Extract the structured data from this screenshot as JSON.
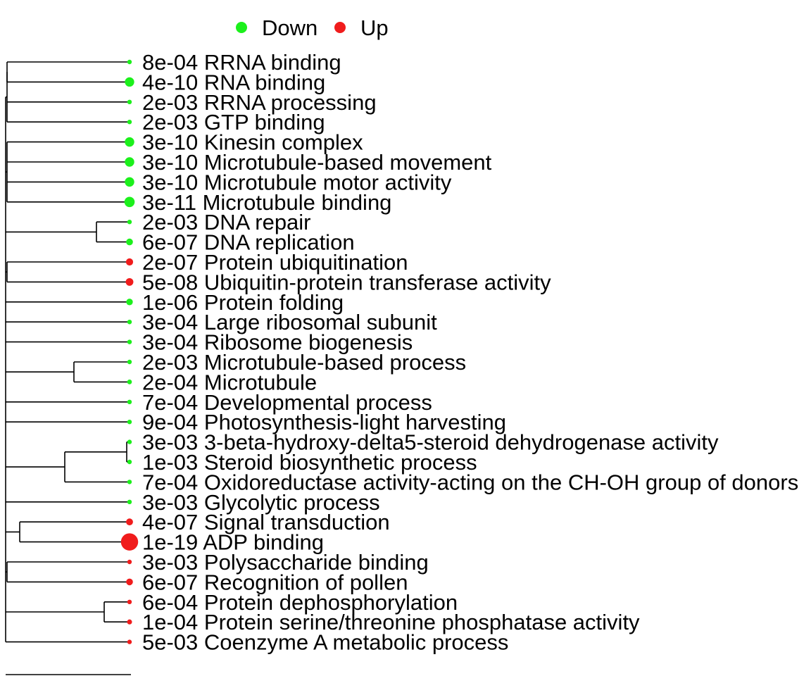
{
  "chart_data": {
    "type": "dendrogram",
    "title": "",
    "legend": {
      "placement": "top",
      "entries": [
        {
          "name": "Down",
          "color": "#1cf01c"
        },
        {
          "name": "Up",
          "color": "#f01c1c"
        }
      ]
    },
    "terms": [
      {
        "p": "8e-04",
        "term": "RRNA binding",
        "direction": "Down"
      },
      {
        "p": "4e-10",
        "term": "RNA binding",
        "direction": "Down"
      },
      {
        "p": "2e-03",
        "term": "RRNA processing",
        "direction": "Down"
      },
      {
        "p": "2e-03",
        "term": "GTP binding",
        "direction": "Down"
      },
      {
        "p": "3e-10",
        "term": "Kinesin complex",
        "direction": "Down"
      },
      {
        "p": "3e-10",
        "term": "Microtubule-based movement",
        "direction": "Down"
      },
      {
        "p": "3e-10",
        "term": "Microtubule motor activity",
        "direction": "Down"
      },
      {
        "p": "3e-11",
        "term": "Microtubule binding",
        "direction": "Down"
      },
      {
        "p": "2e-03",
        "term": "DNA repair",
        "direction": "Down"
      },
      {
        "p": "6e-07",
        "term": "DNA replication",
        "direction": "Down"
      },
      {
        "p": "2e-07",
        "term": "Protein ubiquitination",
        "direction": "Up"
      },
      {
        "p": "5e-08",
        "term": "Ubiquitin-protein transferase activity",
        "direction": "Up"
      },
      {
        "p": "1e-06",
        "term": "Protein folding",
        "direction": "Down"
      },
      {
        "p": "3e-04",
        "term": "Large ribosomal subunit",
        "direction": "Down"
      },
      {
        "p": "3e-04",
        "term": "Ribosome biogenesis",
        "direction": "Down"
      },
      {
        "p": "2e-03",
        "term": "Microtubule-based process",
        "direction": "Down"
      },
      {
        "p": "2e-04",
        "term": "Microtubule",
        "direction": "Down"
      },
      {
        "p": "7e-04",
        "term": "Developmental process",
        "direction": "Down"
      },
      {
        "p": "9e-04",
        "term": "Photosynthesis-light harvesting",
        "direction": "Down"
      },
      {
        "p": "3e-03",
        "term": "3-beta-hydroxy-delta5-steroid dehydrogenase activity",
        "direction": "Down"
      },
      {
        "p": "1e-03",
        "term": "Steroid biosynthetic process",
        "direction": "Down"
      },
      {
        "p": "7e-04",
        "term": "Oxidoreductase activity-acting on the CH-OH group of donors",
        "direction": "Down"
      },
      {
        "p": "3e-03",
        "term": "Glycolytic process",
        "direction": "Down"
      },
      {
        "p": "4e-07",
        "term": "Signal transduction",
        "direction": "Up"
      },
      {
        "p": "1e-19",
        "term": "ADP binding",
        "direction": "Up"
      },
      {
        "p": "3e-03",
        "term": "Polysaccharide binding",
        "direction": "Up"
      },
      {
        "p": "6e-07",
        "term": "Recognition of pollen",
        "direction": "Up"
      },
      {
        "p": "6e-04",
        "term": "Protein dephosphorylation",
        "direction": "Up"
      },
      {
        "p": "1e-04",
        "term": "Protein serine/threonine phosphatase activity",
        "direction": "Up"
      },
      {
        "p": "5e-03",
        "term": "Coenzyme A metabolic process",
        "direction": "Up"
      }
    ],
    "tree": [
      [
        [
          0,
          1
        ],
        2,
        3
      ],
      [
        4,
        5,
        6,
        7
      ],
      [
        8,
        9
      ],
      [
        10,
        11
      ],
      12,
      13,
      14,
      [
        15,
        16
      ],
      17,
      18,
      [
        [
          19,
          20
        ],
        21
      ],
      22,
      [
        23,
        24
      ],
      [
        25,
        26
      ],
      [
        27,
        28
      ],
      29
    ]
  }
}
